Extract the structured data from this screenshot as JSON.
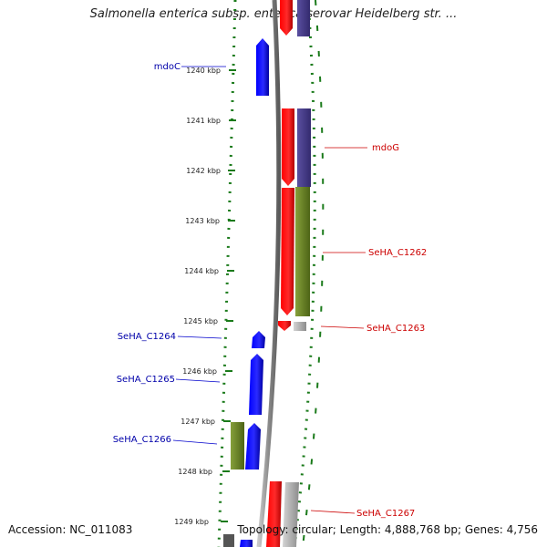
{
  "title": "Salmonella enterica subsp. enterica serovar Heidelberg str. ...",
  "footer": {
    "accession": "Accession: NC_011083",
    "topology": "Topology: circular; Length: 4,888,768 bp; Genes: 4,756"
  },
  "scale": {
    "ticks": [
      "1240 kbp",
      "1241 kbp",
      "1242 kbp",
      "1243 kbp",
      "1244 kbp",
      "1245 kbp",
      "1246 kbp",
      "1247 kbp",
      "1248 kbp",
      "1249 kbp"
    ]
  },
  "colors": {
    "forward_cds": "#ff0000",
    "reverse_cds": "#0000ff",
    "cog_purple": "#4b3f8f",
    "cog_olive": "#6b8523",
    "grey": "#b8b8b8",
    "dotted_ring": "#1a7a1a",
    "backbone": "#808080"
  },
  "labels": {
    "mdoC": "mdoC",
    "mdoG": "mdoG",
    "SeHA_C1262": "SeHA_C1262",
    "SeHA_C1263": "SeHA_C1263",
    "SeHA_C1264": "SeHA_C1264",
    "SeHA_C1265": "SeHA_C1265",
    "SeHA_C1266": "SeHA_C1266",
    "SeHA_C1267": "SeHA_C1267"
  }
}
